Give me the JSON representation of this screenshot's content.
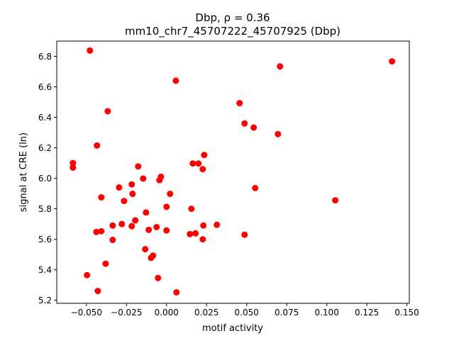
{
  "chart_data": {
    "type": "scatter",
    "title_line1": "Dbp, ρ = 0.36",
    "title_line2": "mm10_chr7_45707222_45707925 (Dbp)",
    "xlabel": "motif activity",
    "ylabel": "signal at CRE (ln)",
    "xlim": [
      -0.0685,
      0.1515
    ],
    "ylim": [
      5.18,
      6.9
    ],
    "xticks": [
      -0.05,
      -0.025,
      0.0,
      0.025,
      0.05,
      0.075,
      0.1,
      0.125,
      0.15
    ],
    "xtick_labels": [
      "−0.050",
      "−0.025",
      "0.000",
      "0.025",
      "0.050",
      "0.075",
      "0.100",
      "0.125",
      "0.150"
    ],
    "yticks": [
      5.2,
      5.4,
      5.6,
      5.8,
      6.0,
      6.2,
      6.4,
      6.6,
      6.8
    ],
    "ytick_labels": [
      "5.2",
      "5.4",
      "5.6",
      "5.8",
      "6.0",
      "6.2",
      "6.4",
      "6.6",
      "6.8"
    ],
    "grid": false,
    "color": "#ff0000",
    "points": [
      [
        -0.0478,
        6.838
      ],
      [
        0.0058,
        6.64
      ],
      [
        -0.0584,
        6.1
      ],
      [
        -0.0584,
        6.07
      ],
      [
        -0.0367,
        6.44
      ],
      [
        -0.0434,
        6.215
      ],
      [
        0.0456,
        6.493
      ],
      [
        0.0708,
        6.734
      ],
      [
        0.1407,
        6.767
      ],
      [
        0.0487,
        6.36
      ],
      [
        0.0544,
        6.333
      ],
      [
        0.0695,
        6.29
      ],
      [
        0.0235,
        6.153
      ],
      [
        0.0164,
        6.097
      ],
      [
        0.0199,
        6.097
      ],
      [
        0.0226,
        6.06
      ],
      [
        -0.0177,
        6.078
      ],
      [
        -0.0035,
        6.01
      ],
      [
        -0.0044,
        5.988
      ],
      [
        -0.0146,
        5.998
      ],
      [
        -0.0217,
        5.96
      ],
      [
        -0.0296,
        5.94
      ],
      [
        -0.0212,
        5.898
      ],
      [
        0.0022,
        5.898
      ],
      [
        0.0553,
        5.936
      ],
      [
        -0.0407,
        5.875
      ],
      [
        -0.0265,
        5.851
      ],
      [
        0.0,
        5.813
      ],
      [
        0.1053,
        5.856
      ],
      [
        0.0155,
        5.8
      ],
      [
        -0.0128,
        5.776
      ],
      [
        -0.0195,
        5.724
      ],
      [
        -0.0279,
        5.7
      ],
      [
        -0.0336,
        5.69
      ],
      [
        -0.0217,
        5.686
      ],
      [
        0.023,
        5.69
      ],
      [
        0.0314,
        5.695
      ],
      [
        -0.0062,
        5.68
      ],
      [
        -0.0111,
        5.662
      ],
      [
        0.0,
        5.658
      ],
      [
        -0.0438,
        5.648
      ],
      [
        -0.0407,
        5.653
      ],
      [
        0.0146,
        5.634
      ],
      [
        0.0181,
        5.639
      ],
      [
        0.0487,
        5.63
      ],
      [
        -0.0336,
        5.596
      ],
      [
        0.0226,
        5.6
      ],
      [
        -0.0133,
        5.535
      ],
      [
        -0.0084,
        5.493
      ],
      [
        -0.0097,
        5.478
      ],
      [
        -0.038,
        5.44
      ],
      [
        -0.0496,
        5.365
      ],
      [
        -0.0053,
        5.346
      ],
      [
        -0.0429,
        5.261
      ],
      [
        0.0062,
        5.252
      ]
    ]
  }
}
